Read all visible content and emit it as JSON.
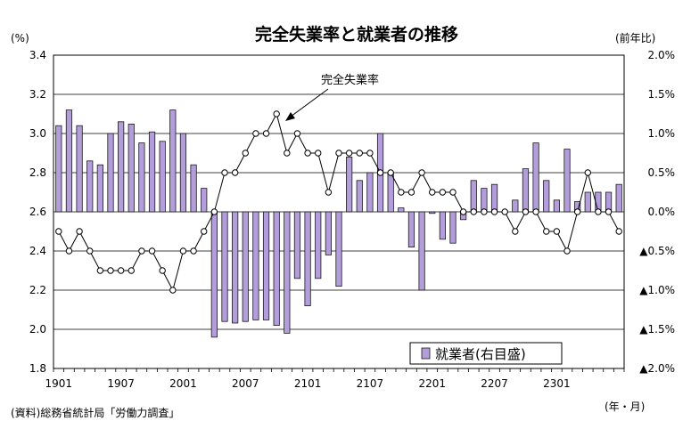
{
  "chart_data": {
    "type": "bar",
    "title": "完全失業率と就業者の推移",
    "left_unit": "(%)",
    "right_unit": "(前年比)",
    "x_unit": "(年・月)",
    "source": "(資料)総務省統計局「労働力調査」",
    "x_tick_labels": [
      "1901",
      "1907",
      "2001",
      "2007",
      "2101",
      "2107",
      "2201",
      "2207",
      "2301"
    ],
    "left_axis": {
      "ylim": [
        1.8,
        3.4
      ],
      "tick_labels": [
        "1.8",
        "2.0",
        "2.2",
        "2.4",
        "2.6",
        "2.8",
        "3.0",
        "3.2",
        "3.4"
      ]
    },
    "right_axis": {
      "ylim": [
        -2.0,
        2.0
      ],
      "tick_labels": [
        "▲2.0%",
        "▲1.5%",
        "▲1.0%",
        "▲0.5%",
        "0.0%",
        "0.5%",
        "1.0%",
        "1.5%",
        "2.0%"
      ]
    },
    "grid": true,
    "colors": {
      "bar": "#b39ddb",
      "bar_edge": "#1a1a1a",
      "line": "#000000",
      "marker_fill": "#ffffff"
    },
    "annotation": "完全失業率",
    "series": [
      {
        "name": "就業者(右目盛)",
        "type": "bar",
        "axis": "right",
        "values": [
          1.1,
          1.3,
          1.1,
          0.65,
          0.6,
          1.0,
          1.15,
          1.12,
          0.88,
          1.02,
          0.9,
          1.3,
          1.0,
          0.6,
          0.3,
          -1.6,
          -1.4,
          -1.42,
          -1.4,
          -1.38,
          -1.38,
          -1.45,
          -1.55,
          -0.85,
          -1.2,
          -0.85,
          -0.55,
          -0.95,
          0.7,
          0.4,
          0.5,
          1.0,
          0.5,
          0.05,
          -0.45,
          -1.0,
          -0.02,
          -0.35,
          -0.4,
          -0.1,
          0.4,
          0.3,
          0.35,
          0.0,
          0.15,
          0.55,
          0.88,
          0.4,
          0.15,
          0.8,
          0.13,
          0.25,
          0.25,
          0.25,
          0.35
        ]
      },
      {
        "name": "完全失業率",
        "type": "line",
        "axis": "left",
        "values": [
          2.5,
          2.4,
          2.5,
          2.4,
          2.3,
          2.3,
          2.3,
          2.3,
          2.4,
          2.4,
          2.3,
          2.2,
          2.4,
          2.4,
          2.5,
          2.6,
          2.8,
          2.8,
          2.9,
          3.0,
          3.0,
          3.1,
          2.9,
          3.0,
          2.9,
          2.9,
          2.7,
          2.9,
          2.9,
          2.9,
          2.9,
          2.8,
          2.8,
          2.7,
          2.7,
          2.8,
          2.7,
          2.7,
          2.7,
          2.6,
          2.6,
          2.6,
          2.6,
          2.6,
          2.5,
          2.6,
          2.6,
          2.5,
          2.5,
          2.4,
          2.6,
          2.8,
          2.6,
          2.6,
          2.5
        ]
      }
    ]
  }
}
